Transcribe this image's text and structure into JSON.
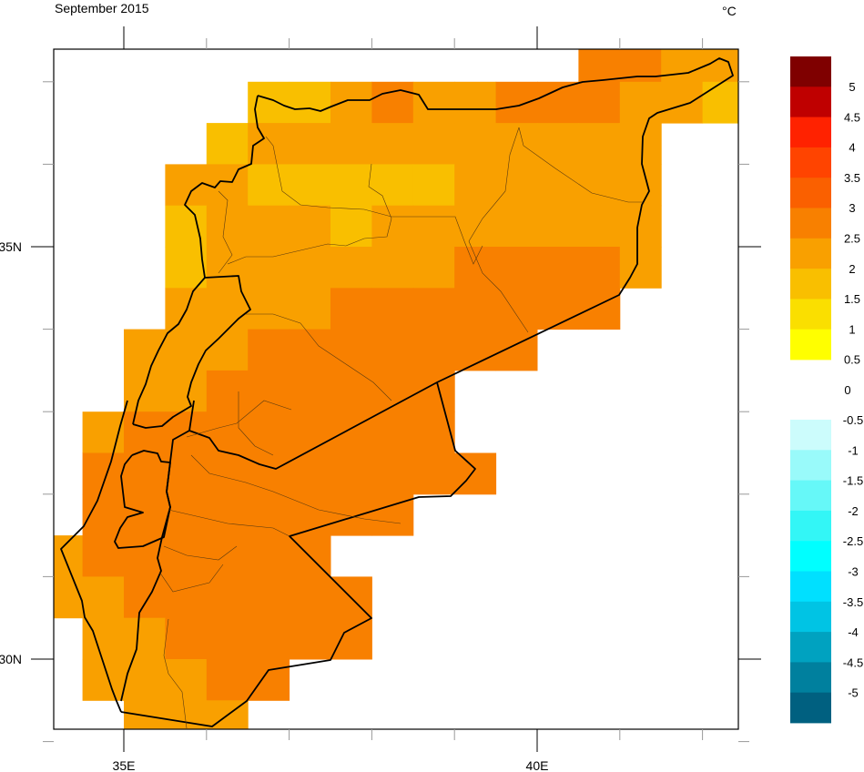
{
  "title": "September 2015",
  "units": "°C",
  "axes": {
    "lat_labels": [
      {
        "value": 35,
        "text": "35N"
      },
      {
        "value": 30,
        "text": "30N"
      }
    ],
    "lon_labels": [
      {
        "value": 35,
        "text": "35E"
      },
      {
        "value": 40,
        "text": "40E"
      }
    ]
  },
  "colorbar": {
    "warm": {
      "labels": [
        "5",
        "4.5",
        "4",
        "3.5",
        "3",
        "2.5",
        "2",
        "1.5",
        "1",
        "0.5"
      ],
      "colors": [
        "#7f0000",
        "#bf0000",
        "#ff2200",
        "#ff4400",
        "#fa6000",
        "#f88000",
        "#f9a000",
        "#f9bf00",
        "#fadf00",
        "#ffff00"
      ]
    },
    "zero_label": "0",
    "cold": {
      "labels": [
        "-0.5",
        "-1",
        "-1.5",
        "-2",
        "-2.5",
        "-3",
        "-3.5",
        "-4",
        "-4.5",
        "-5"
      ],
      "colors": [
        "#ccfcfc",
        "#99fafa",
        "#66f8f8",
        "#33f6f6",
        "#00ffff",
        "#00e0ff",
        "#00c4e4",
        "#00a2c0",
        "#00809e",
        "#006080"
      ]
    }
  },
  "chart_data": {
    "type": "heatmap",
    "title": "September 2015",
    "units": "°C",
    "lon_start": 34.0,
    "lat_top": 37.5,
    "cell_size_deg": 0.5,
    "value_meaning": "lower bound of colour bin (bin width 0.5 °C), null = no data",
    "bin_colors": {
      "1.5": "#f9bf00",
      "2": "#f9a000",
      "2.5": "#f88000"
    },
    "rows": [
      [
        null,
        null,
        null,
        null,
        null,
        null,
        null,
        null,
        null,
        null,
        null,
        null,
        null,
        2.5,
        2.5,
        2,
        2
      ],
      [
        null,
        null,
        null,
        null,
        null,
        1.5,
        1.5,
        2,
        2.5,
        2,
        2,
        2.5,
        2.5,
        2.5,
        2,
        2,
        1.5
      ],
      [
        null,
        null,
        null,
        null,
        1.5,
        2,
        2,
        2,
        2,
        2,
        2,
        2,
        2,
        2,
        2,
        null,
        null
      ],
      [
        null,
        null,
        null,
        2,
        2,
        1.5,
        1.5,
        1.5,
        1.5,
        1.5,
        2,
        2,
        2,
        2,
        2,
        null,
        null
      ],
      [
        null,
        null,
        null,
        1.5,
        2,
        2,
        2,
        1.5,
        2,
        2,
        2,
        2,
        2,
        2,
        2,
        null,
        null
      ],
      [
        null,
        null,
        null,
        1.5,
        2,
        2,
        2,
        2,
        2,
        2,
        2.5,
        2.5,
        2.5,
        2.5,
        2,
        null,
        null
      ],
      [
        null,
        null,
        null,
        2,
        2,
        2,
        2,
        2.5,
        2.5,
        2.5,
        2.5,
        2.5,
        2.5,
        2.5,
        null,
        null,
        null
      ],
      [
        null,
        null,
        2,
        2,
        2,
        2.5,
        2.5,
        2.5,
        2.5,
        2.5,
        2.5,
        2.5,
        null,
        null,
        null,
        null,
        null
      ],
      [
        null,
        null,
        2,
        2,
        2.5,
        2.5,
        2.5,
        2.5,
        2.5,
        2.5,
        null,
        null,
        null,
        null,
        null,
        null,
        null
      ],
      [
        null,
        2,
        2.5,
        2.5,
        2.5,
        2.5,
        2.5,
        2.5,
        2.5,
        2.5,
        null,
        null,
        null,
        null,
        null,
        null,
        null
      ],
      [
        null,
        2.5,
        2.5,
        2.5,
        2.5,
        2.5,
        2.5,
        2.5,
        2.5,
        2.5,
        2.5,
        null,
        null,
        null,
        null,
        null,
        null
      ],
      [
        null,
        2.5,
        2.5,
        2.5,
        2.5,
        2.5,
        2.5,
        2.5,
        2.5,
        null,
        null,
        null,
        null,
        null,
        null,
        null,
        null
      ],
      [
        2,
        2.5,
        2.5,
        2.5,
        2.5,
        2.5,
        2.5,
        null,
        null,
        null,
        null,
        null,
        null,
        null,
        null,
        null,
        null
      ],
      [
        2,
        2,
        2.5,
        2.5,
        2.5,
        2.5,
        2.5,
        2.5,
        null,
        null,
        null,
        null,
        null,
        null,
        null,
        null,
        null
      ],
      [
        null,
        2,
        2,
        2.5,
        2.5,
        2.5,
        2.5,
        2.5,
        null,
        null,
        null,
        null,
        null,
        null,
        null,
        null,
        null
      ],
      [
        null,
        2,
        2,
        2,
        2.5,
        2.5,
        null,
        null,
        null,
        null,
        null,
        null,
        null,
        null,
        null,
        null,
        null
      ],
      [
        null,
        null,
        2,
        2,
        2,
        null,
        null,
        null,
        null,
        null,
        null,
        null,
        null,
        null,
        null,
        null,
        null
      ]
    ]
  }
}
